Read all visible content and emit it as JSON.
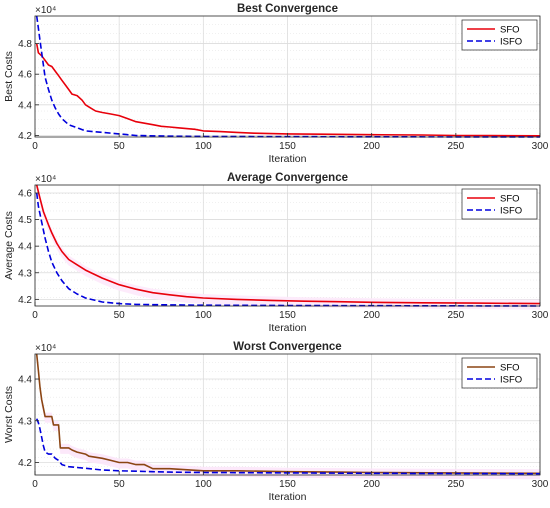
{
  "chart_data": [
    {
      "type": "line",
      "title": "Best Convergence",
      "xlabel": "Iteration",
      "ylabel": "Best Costs",
      "xlim": [
        0,
        300
      ],
      "ylim": [
        41900,
        49800
      ],
      "xticks": [
        "0",
        "50",
        "100",
        "150",
        "200",
        "250",
        "300"
      ],
      "yticks": [
        "4.2",
        "4.4",
        "4.6",
        "4.8"
      ],
      "ytick_values": [
        42000,
        44000,
        46000,
        48000
      ],
      "exponent_label": "×10⁴",
      "grid": true,
      "legend_position": "top-right",
      "series": [
        {
          "name": "SFO",
          "color": "#e8000b",
          "style": "solid",
          "x": [
            1,
            2,
            4,
            6,
            8,
            10,
            12,
            14,
            16,
            18,
            20,
            22,
            25,
            28,
            30,
            33,
            36,
            40,
            45,
            50,
            55,
            60,
            65,
            70,
            75,
            80,
            85,
            90,
            95,
            100,
            110,
            120,
            130,
            150,
            170,
            200,
            230,
            250,
            270,
            300
          ],
          "y": [
            48000,
            47400,
            47200,
            46900,
            46600,
            46500,
            46200,
            45900,
            45600,
            45300,
            45000,
            44700,
            44600,
            44300,
            44000,
            43800,
            43600,
            43500,
            43400,
            43300,
            43100,
            42900,
            42800,
            42700,
            42600,
            42550,
            42500,
            42450,
            42400,
            42300,
            42250,
            42200,
            42150,
            42100,
            42080,
            42050,
            42030,
            42000,
            41990,
            41980
          ]
        },
        {
          "name": "ISFO",
          "color": "#0000dd",
          "style": "dashed",
          "x": [
            1,
            2,
            3,
            4,
            5,
            6,
            8,
            10,
            12,
            14,
            16,
            18,
            20,
            25,
            30,
            40,
            50,
            60,
            80,
            100,
            150,
            200,
            300
          ],
          "y": [
            49800,
            49000,
            48200,
            47400,
            46600,
            45800,
            45000,
            44300,
            43800,
            43400,
            43100,
            42900,
            42700,
            42500,
            42300,
            42200,
            42100,
            42000,
            41950,
            41930,
            41920,
            41910,
            41900
          ]
        }
      ]
    },
    {
      "type": "line",
      "title": "Average Convergence",
      "xlabel": "Iteration",
      "ylabel": "Average Costs",
      "xlim": [
        0,
        300
      ],
      "ylim": [
        41750,
        46300
      ],
      "xticks": [
        "0",
        "50",
        "100",
        "150",
        "200",
        "250",
        "300"
      ],
      "yticks": [
        "4.2",
        "4.3",
        "4.4",
        "4.5",
        "4.6"
      ],
      "ytick_values": [
        42000,
        43000,
        44000,
        45000,
        46000
      ],
      "exponent_label": "×10⁴",
      "grid": true,
      "legend_position": "top-right",
      "series": [
        {
          "name": "SFO",
          "color": "#e8000b",
          "style": "solid",
          "x": [
            1,
            3,
            5,
            8,
            10,
            13,
            16,
            20,
            25,
            30,
            35,
            40,
            50,
            60,
            70,
            80,
            90,
            100,
            120,
            140,
            160,
            180,
            200,
            230,
            260,
            300
          ],
          "y": [
            46300,
            45800,
            45300,
            44800,
            44500,
            44100,
            43800,
            43500,
            43300,
            43100,
            42950,
            42800,
            42550,
            42380,
            42250,
            42170,
            42100,
            42050,
            42000,
            41960,
            41930,
            41910,
            41890,
            41870,
            41860,
            41840
          ]
        },
        {
          "name": "ISFO",
          "color": "#0000dd",
          "style": "dashed",
          "x": [
            1,
            2,
            4,
            6,
            8,
            10,
            13,
            16,
            20,
            25,
            30,
            40,
            50,
            60,
            80,
            100,
            150,
            200,
            300
          ],
          "y": [
            46000,
            45500,
            44900,
            44300,
            43800,
            43400,
            43000,
            42700,
            42400,
            42200,
            42050,
            41900,
            41840,
            41810,
            41790,
            41780,
            41770,
            41760,
            41750
          ]
        }
      ]
    },
    {
      "type": "line",
      "title": "Worst Convergence",
      "xlabel": "Iteration",
      "ylabel": "Worst Costs",
      "xlim": [
        0,
        300
      ],
      "ylim": [
        41700,
        44600
      ],
      "xticks": [
        "0",
        "50",
        "100",
        "150",
        "200",
        "250",
        "300"
      ],
      "yticks": [
        "4.2",
        "4.3",
        "4.4"
      ],
      "ytick_values": [
        42000,
        43000,
        44000
      ],
      "exponent_label": "×10⁴",
      "grid": true,
      "legend_position": "top-right",
      "series": [
        {
          "name": "SFO",
          "color": "#8b4513",
          "style": "solid",
          "x": [
            1,
            2,
            3,
            4,
            5,
            6,
            10,
            11,
            14,
            15,
            20,
            22,
            25,
            30,
            32,
            40,
            45,
            50,
            55,
            60,
            65,
            70,
            80,
            100,
            120,
            150,
            180,
            200,
            250,
            300
          ],
          "y": [
            44600,
            44200,
            43800,
            43500,
            43300,
            43100,
            43100,
            42900,
            42900,
            42350,
            42350,
            42300,
            42250,
            42200,
            42150,
            42100,
            42050,
            42000,
            42000,
            41950,
            41950,
            41850,
            41850,
            41800,
            41800,
            41780,
            41770,
            41760,
            41750,
            41740
          ]
        },
        {
          "name": "ISFO",
          "color": "#0000dd",
          "style": "dashed",
          "x": [
            1,
            2,
            3,
            4,
            5,
            6,
            8,
            10,
            12,
            14,
            16,
            20,
            25,
            30,
            40,
            50,
            60,
            70,
            80,
            100,
            150,
            200,
            300
          ],
          "y": [
            43050,
            42950,
            42800,
            42600,
            42400,
            42250,
            42200,
            42200,
            42100,
            42050,
            41950,
            41900,
            41880,
            41860,
            41820,
            41800,
            41790,
            41780,
            41770,
            41760,
            41750,
            41740,
            41730
          ]
        }
      ]
    }
  ]
}
